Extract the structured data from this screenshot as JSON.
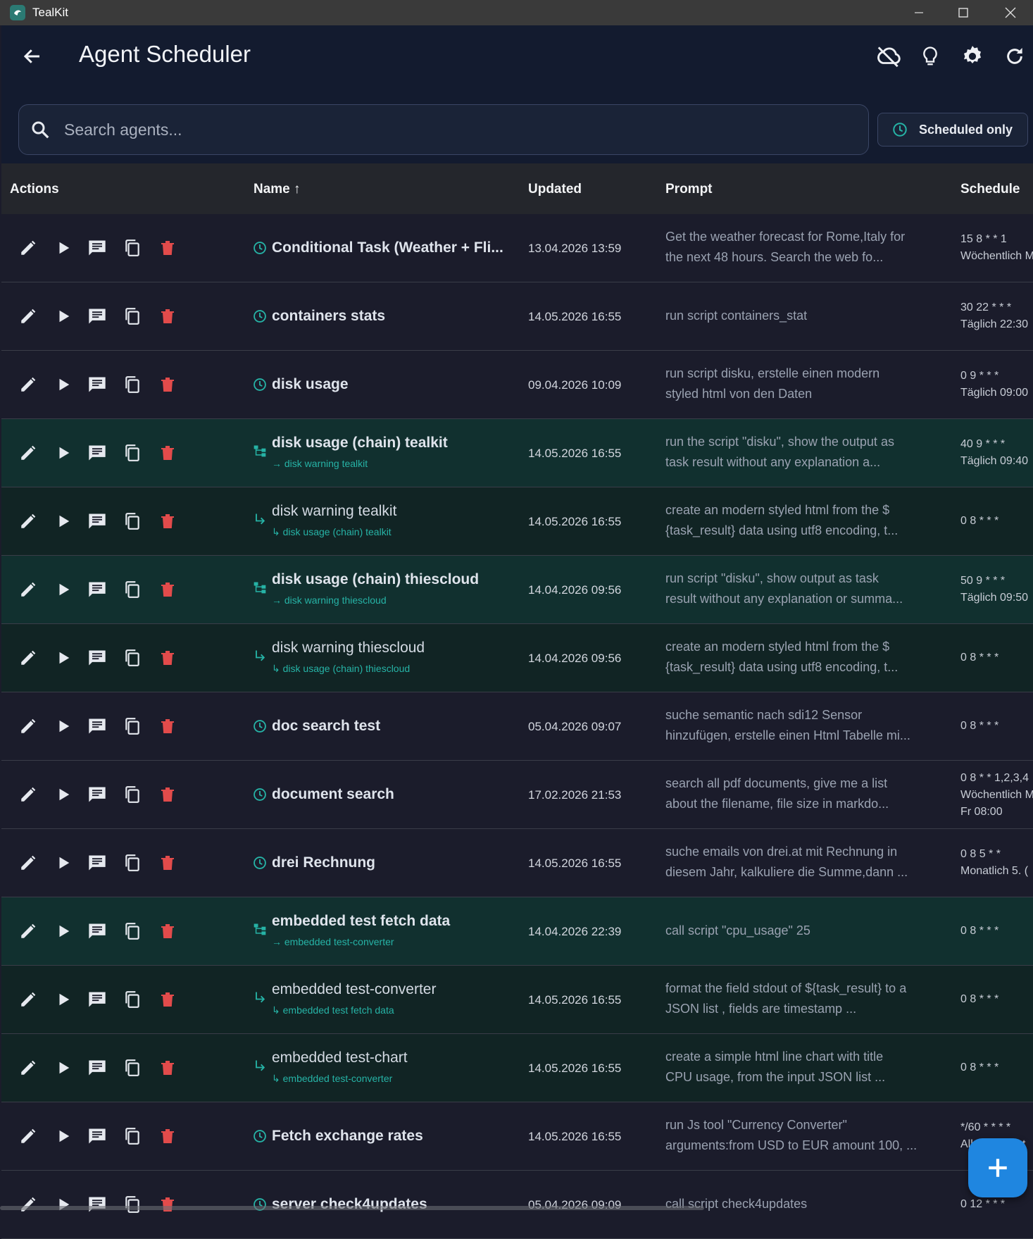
{
  "window": {
    "title": "TealKit"
  },
  "header": {
    "title": "Agent Scheduler"
  },
  "search": {
    "placeholder": "Search agents..."
  },
  "filter": {
    "label": "Scheduled only"
  },
  "columns": {
    "actions": "Actions",
    "name": "Name ↑",
    "updated": "Updated",
    "prompt": "Prompt",
    "schedule": "Schedule"
  },
  "colors": {
    "accent": "#26b3a6",
    "delete": "#e24b4b",
    "fab": "#1f86e0",
    "chain_row": "#11302f"
  },
  "rows": [
    {
      "type": "scheduled",
      "name": "Conditional Task (Weather + Fli...",
      "sub": "",
      "updated": "13.04.2026 13:59",
      "prompt_1": "Get the weather forecast for Rome,Italy for",
      "prompt_2": "the next 48 hours. Search the web fo...",
      "sched_1": "15 8 * * 1",
      "sched_2": "Wöchentlich M",
      "sched_3": ""
    },
    {
      "type": "scheduled",
      "name": "containers stats",
      "sub": "",
      "updated": "14.05.2026 16:55",
      "prompt_1": "run script containers_stat",
      "prompt_2": "",
      "sched_1": "30 22 * * *",
      "sched_2": "Täglich 22:30",
      "sched_3": ""
    },
    {
      "type": "scheduled",
      "name": "disk usage",
      "sub": "",
      "updated": "09.04.2026 10:09",
      "prompt_1": "run script disku, erstelle einen modern",
      "prompt_2": "styled html von den Daten",
      "sched_1": "0 9 * * *",
      "sched_2": "Täglich 09:00",
      "sched_3": ""
    },
    {
      "type": "chain",
      "name": "disk usage (chain) tealkit",
      "sub": "→ disk warning tealkit",
      "updated": "14.05.2026 16:55",
      "prompt_1": "run the script \"disku\", show the output as",
      "prompt_2": "task result without any explanation a...",
      "sched_1": "40 9 * * *",
      "sched_2": "Täglich 09:40",
      "sched_3": ""
    },
    {
      "type": "child",
      "name": "disk warning tealkit",
      "sub": "↳ disk usage (chain) tealkit",
      "updated": "14.05.2026 16:55",
      "prompt_1": "create an modern styled html from the $",
      "prompt_2": "{task_result} data using utf8 encoding, t...",
      "sched_1": "0 8 * * *",
      "sched_2": "",
      "sched_3": ""
    },
    {
      "type": "chain",
      "name": "disk usage (chain) thiescloud",
      "sub": "→ disk warning thiescloud",
      "updated": "14.04.2026 09:56",
      "prompt_1": "run  script \"disku\", show output as task",
      "prompt_2": "result without any explanation or summa...",
      "sched_1": "50 9 * * *",
      "sched_2": "Täglich 09:50",
      "sched_3": ""
    },
    {
      "type": "child",
      "name": "disk warning thiescloud",
      "sub": "↳ disk usage (chain) thiescloud",
      "updated": "14.04.2026 09:56",
      "prompt_1": "create an modern styled html from the $",
      "prompt_2": "{task_result} data using utf8 encoding, t...",
      "sched_1": "0 8 * * *",
      "sched_2": "",
      "sched_3": ""
    },
    {
      "type": "scheduled",
      "name": "doc search test",
      "sub": "",
      "updated": "05.04.2026 09:07",
      "prompt_1": "suche semantic nach sdi12 Sensor",
      "prompt_2": "hinzufügen, erstelle einen Html Tabelle mi...",
      "sched_1": "0 8 * * *",
      "sched_2": "",
      "sched_3": ""
    },
    {
      "type": "scheduled",
      "name": "document search",
      "sub": "",
      "updated": "17.02.2026 21:53",
      "prompt_1": "search all pdf documents, give me a list",
      "prompt_2": "about the filename, file size in markdo...",
      "sched_1": "0 8 * * 1,2,3,4",
      "sched_2": "Wöchentlich M",
      "sched_3": "Fr 08:00"
    },
    {
      "type": "scheduled",
      "name": "drei Rechnung",
      "sub": "",
      "updated": "14.05.2026 16:55",
      "prompt_1": "suche emails von drei.at mit Rechnung in",
      "prompt_2": "diesem Jahr, kalkuliere die Summe,dann ...",
      "sched_1": "0 8 5 * *",
      "sched_2": "Monatlich 5. (",
      "sched_3": ""
    },
    {
      "type": "chain",
      "name": "embedded test fetch data",
      "sub": "→ embedded test-converter",
      "updated": "14.04.2026 22:39",
      "prompt_1": "call script \"cpu_usage\" 25",
      "prompt_2": "",
      "sched_1": "0 8 * * *",
      "sched_2": "",
      "sched_3": ""
    },
    {
      "type": "child",
      "name": "embedded test-converter",
      "sub": "↳ embedded test fetch data",
      "updated": "14.05.2026 16:55",
      "prompt_1": "format the field stdout of ${task_result} to a",
      "prompt_2": "JSON list , fields are timestamp ...",
      "sched_1": "0 8 * * *",
      "sched_2": "",
      "sched_3": ""
    },
    {
      "type": "child",
      "name": "embedded test-chart",
      "sub": "↳ embedded test-converter",
      "updated": "14.05.2026 16:55",
      "prompt_1": "create a simple html line chart with title",
      "prompt_2": "CPU usage, from the input JSON list  ...",
      "sched_1": "0 8 * * *",
      "sched_2": "",
      "sched_3": ""
    },
    {
      "type": "scheduled",
      "name": "Fetch exchange rates",
      "sub": "",
      "updated": "14.05.2026 16:55",
      "prompt_1": "run Js tool \"Currency Converter\"",
      "prompt_2": "arguments:from USD to EUR amount 100, ...",
      "sched_1": "*/60 * * * *",
      "sched_2": "Alle 60 Minut",
      "sched_3": ""
    },
    {
      "type": "scheduled",
      "name": "server check4updates",
      "sub": "",
      "updated": "05.04.2026 09:09",
      "prompt_1": "call script check4updates",
      "prompt_2": "",
      "sched_1": "0 12 * * *",
      "sched_2": "",
      "sched_3": ""
    }
  ],
  "fab": {
    "label": "+"
  }
}
